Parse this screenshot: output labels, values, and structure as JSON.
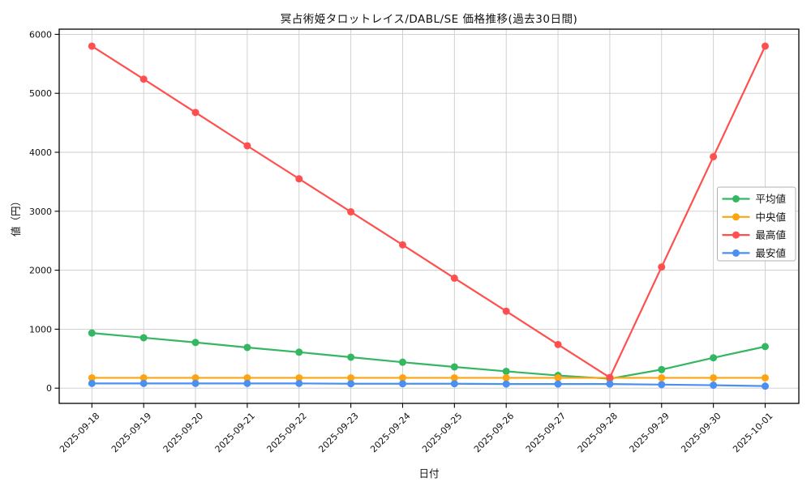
{
  "chart_data": {
    "type": "line",
    "title": "冥占術姫タロットレイス/DABL/SE 価格推移(過去30日間)",
    "xlabel": "日付",
    "ylabel": "値（円）",
    "x": [
      "2025-09-18",
      "2025-09-19",
      "2025-09-20",
      "2025-09-21",
      "2025-09-22",
      "2025-09-23",
      "2025-09-24",
      "2025-09-25",
      "2025-09-26",
      "2025-09-27",
      "2025-09-28",
      "2025-09-29",
      "2025-09-30",
      "2025-10-01"
    ],
    "series": [
      {
        "key": "average",
        "name": "平均値",
        "color": "#33b760",
        "values": [
          935,
          855,
          775,
          690,
          610,
          525,
          440,
          360,
          285,
          215,
          160,
          315,
          515,
          705
        ]
      },
      {
        "key": "median",
        "name": "中央値",
        "color": "#ffa411",
        "values": [
          175,
          175,
          175,
          175,
          175,
          175,
          175,
          175,
          175,
          175,
          175,
          175,
          175,
          175
        ]
      },
      {
        "key": "max",
        "name": "最高値",
        "color": "#ff4f4f",
        "values": [
          5800,
          5240,
          4675,
          4110,
          3550,
          2990,
          2430,
          1865,
          1305,
          740,
          180,
          2055,
          3925,
          5800
        ]
      },
      {
        "key": "min",
        "name": "最安値",
        "color": "#4a90f2",
        "values": [
          80,
          80,
          80,
          80,
          80,
          75,
          75,
          75,
          70,
          70,
          70,
          60,
          50,
          35
        ]
      }
    ],
    "yticks": [
      0,
      1000,
      2000,
      3000,
      4000,
      5000,
      6000
    ],
    "ylim": [
      -260,
      6090
    ],
    "grid": true,
    "grid_color": "#cccccc",
    "axis_color": "#000000",
    "legend_position": "right-inside"
  }
}
